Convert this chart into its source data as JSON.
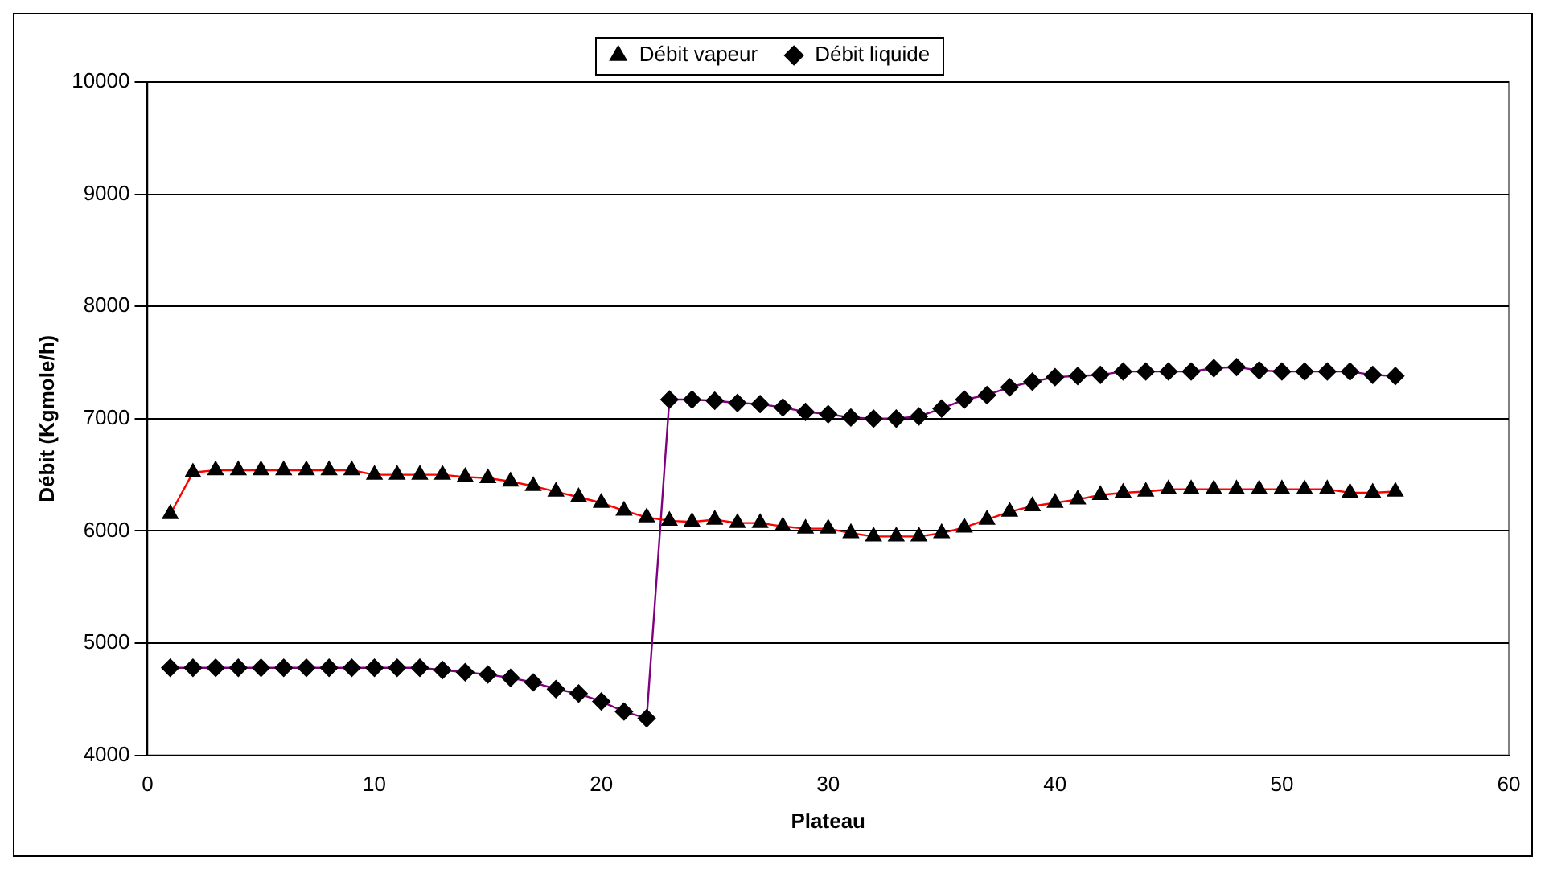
{
  "chart_data": {
    "type": "line",
    "xlabel": "Plateau",
    "ylabel": "Débit (Kgmole/h)",
    "x": [
      1,
      2,
      3,
      4,
      5,
      6,
      7,
      8,
      9,
      10,
      11,
      12,
      13,
      14,
      15,
      16,
      17,
      18,
      19,
      20,
      21,
      22,
      23,
      24,
      25,
      26,
      27,
      28,
      29,
      30,
      31,
      32,
      33,
      34,
      35,
      36,
      37,
      38,
      39,
      40,
      41,
      42,
      43,
      44,
      45,
      46,
      47,
      48,
      49,
      50,
      51,
      52,
      53,
      54,
      55
    ],
    "series": [
      {
        "name": "Débit vapeur",
        "color": "#ff0000",
        "marker": "triangle",
        "values": [
          6150,
          6520,
          6540,
          6540,
          6540,
          6540,
          6540,
          6540,
          6540,
          6500,
          6500,
          6500,
          6500,
          6480,
          6470,
          6440,
          6400,
          6350,
          6300,
          6250,
          6180,
          6120,
          6090,
          6080,
          6100,
          6070,
          6070,
          6040,
          6020,
          6020,
          5980,
          5950,
          5950,
          5950,
          5980,
          6030,
          6100,
          6170,
          6220,
          6250,
          6280,
          6320,
          6340,
          6350,
          6370,
          6370,
          6370,
          6370,
          6370,
          6370,
          6370,
          6370,
          6340,
          6340,
          6350
        ]
      },
      {
        "name": "Débit liquide",
        "color": "#800080",
        "marker": "diamond",
        "values": [
          4780,
          4780,
          4780,
          4780,
          4780,
          4780,
          4780,
          4780,
          4780,
          4780,
          4780,
          4780,
          4760,
          4740,
          4720,
          4690,
          4650,
          4590,
          4550,
          4480,
          4390,
          4330,
          7170,
          7170,
          7160,
          7140,
          7130,
          7100,
          7060,
          7040,
          7010,
          7000,
          7000,
          7020,
          7090,
          7170,
          7210,
          7280,
          7330,
          7370,
          7380,
          7390,
          7420,
          7420,
          7420,
          7420,
          7450,
          7460,
          7430,
          7420,
          7420,
          7420,
          7420,
          7390,
          7380
        ]
      }
    ],
    "xlim": [
      0,
      60
    ],
    "xticks": [
      0,
      10,
      20,
      30,
      40,
      50,
      60
    ],
    "ylim": [
      4000,
      10000
    ],
    "yticks": [
      4000,
      5000,
      6000,
      7000,
      8000,
      9000,
      10000
    ],
    "grid": "y",
    "legend": "top"
  }
}
